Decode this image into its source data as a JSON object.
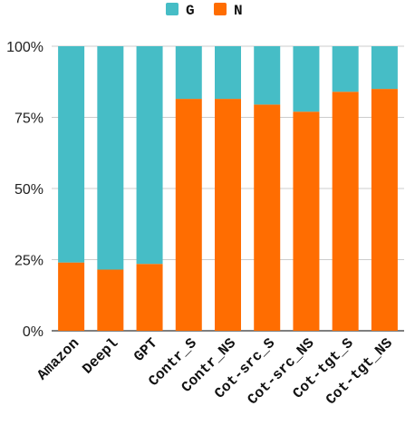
{
  "chart_data": {
    "type": "bar",
    "stacked": true,
    "percent": true,
    "categories": [
      "Amazon",
      "Deepl",
      "GPT",
      "Contr_S",
      "Contr_NS",
      "Cot-src_S",
      "Cot-src_NS",
      "Cot-tgt_S",
      "Cot-tgt_NS"
    ],
    "series": [
      {
        "name": "N",
        "color": "#FF6D01",
        "values": [
          24,
          21.5,
          23.5,
          81.5,
          81.5,
          79.5,
          77,
          84,
          85
        ]
      },
      {
        "name": "G",
        "color": "#46BDC6",
        "values": [
          76,
          78.5,
          76.5,
          18.5,
          18.5,
          20.5,
          23,
          16,
          15
        ]
      }
    ],
    "legend_order": [
      "G",
      "N"
    ],
    "yticks": [
      "0%",
      "25%",
      "50%",
      "75%",
      "100%"
    ],
    "ylim": [
      0,
      100
    ],
    "legend_position": "top",
    "grid": true,
    "title": "",
    "xlabel": "",
    "ylabel": ""
  }
}
